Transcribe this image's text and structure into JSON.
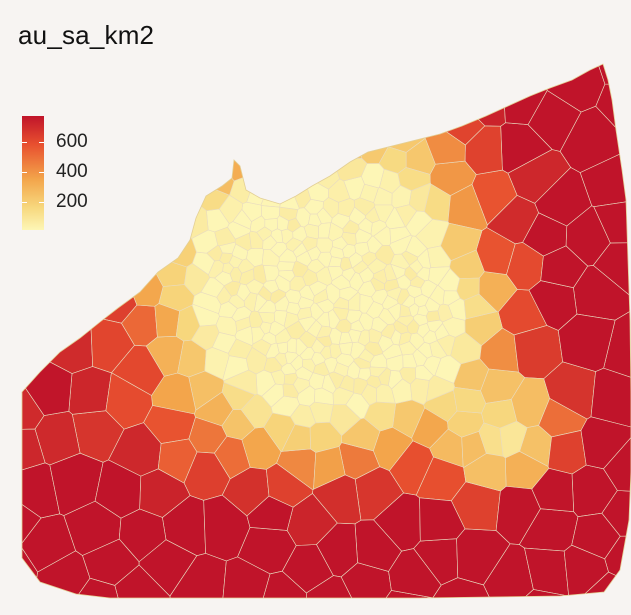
{
  "title": "au_sa_km2",
  "legend": {
    "ticks": [
      {
        "label": "600",
        "value": 600
      },
      {
        "label": "400",
        "value": 400
      },
      {
        "label": "200",
        "value": 200
      }
    ],
    "min": 40,
    "max": 700,
    "colors": [
      "#fdf6b6",
      "#f7d77d",
      "#f3a44a",
      "#e8502f",
      "#c0142a"
    ]
  },
  "map": {
    "type": "choropleth-voronoi",
    "variable": "au_sa_km2"
  }
}
